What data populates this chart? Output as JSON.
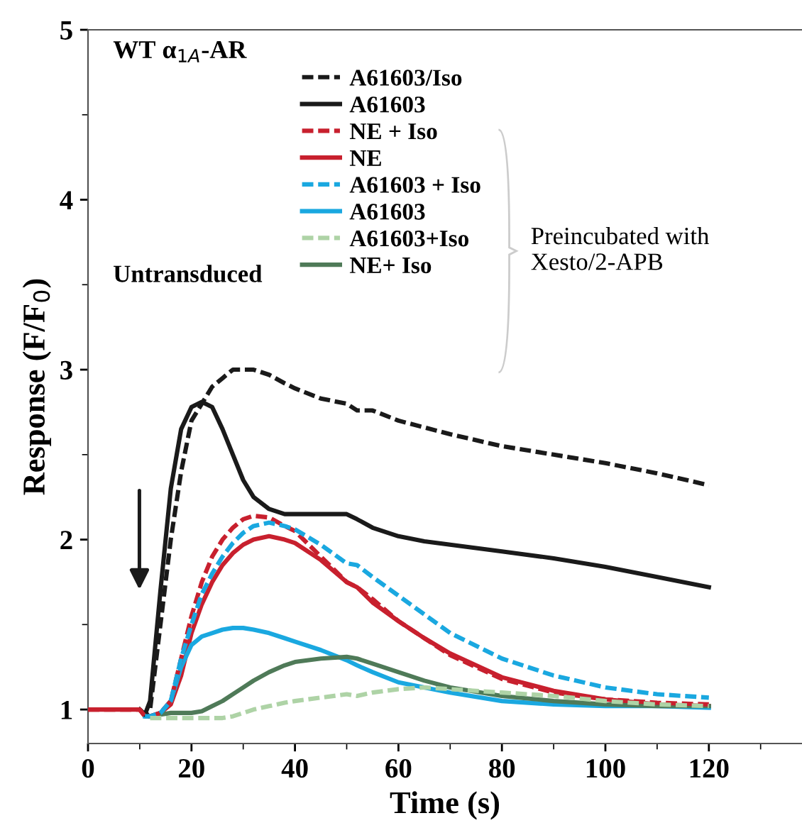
{
  "chart_data": {
    "type": "line",
    "title": "WT α$_{1A}$-AR",
    "xlabel": "Time (s)",
    "ylabel": "Response (F/F$_{0}$)",
    "x": [
      0,
      5,
      10,
      11,
      12,
      14,
      16,
      18,
      20,
      22,
      24,
      26,
      28,
      30,
      32,
      35,
      38,
      40,
      45,
      50,
      52,
      55,
      60,
      65,
      70,
      80,
      90,
      100,
      110,
      120
    ],
    "xlim": [
      0,
      138
    ],
    "ylim": [
      0.8,
      5
    ],
    "xticks": [
      0,
      20,
      40,
      60,
      80,
      100,
      120
    ],
    "yticks": [
      1,
      2,
      3,
      4,
      5
    ],
    "grid": false,
    "legend": "top",
    "marker": "none",
    "series": [
      {
        "name": "A61603/Iso",
        "color": "#1a1a1a",
        "line_style": "dashed",
        "values": [
          null,
          null,
          1.0,
          0.97,
          1.0,
          1.5,
          2.0,
          2.4,
          2.7,
          2.8,
          2.9,
          2.95,
          3.0,
          3.0,
          3.0,
          2.97,
          2.92,
          2.89,
          2.83,
          2.8,
          2.76,
          2.76,
          2.7,
          2.66,
          2.62,
          2.55,
          2.5,
          2.45,
          2.39,
          2.32
        ]
      },
      {
        "name": "A61603",
        "color": "#1a1a1a",
        "line_style": "solid",
        "values": [
          null,
          null,
          1.0,
          0.97,
          1.05,
          1.7,
          2.3,
          2.65,
          2.78,
          2.81,
          2.78,
          2.65,
          2.5,
          2.35,
          2.25,
          2.18,
          2.15,
          2.15,
          2.15,
          2.15,
          2.12,
          2.07,
          2.02,
          1.99,
          1.97,
          1.93,
          1.89,
          1.84,
          1.78,
          1.72
        ]
      },
      {
        "name": "NE + Iso",
        "color": "#c8202e",
        "line_style": "dashed",
        "values": [
          1.0,
          1.0,
          1.0,
          0.96,
          0.96,
          0.98,
          1.05,
          1.3,
          1.55,
          1.75,
          1.9,
          2.0,
          2.07,
          2.12,
          2.14,
          2.13,
          2.08,
          2.05,
          1.9,
          1.75,
          1.72,
          1.65,
          1.52,
          1.42,
          1.32,
          1.18,
          1.1,
          1.06,
          1.04,
          1.03
        ]
      },
      {
        "name": "NE",
        "color": "#c8202e",
        "line_style": "solid",
        "values": [
          1.0,
          1.0,
          1.0,
          0.96,
          0.96,
          0.98,
          1.03,
          1.2,
          1.45,
          1.62,
          1.75,
          1.85,
          1.92,
          1.97,
          2.0,
          2.02,
          2.0,
          1.98,
          1.88,
          1.75,
          1.72,
          1.63,
          1.52,
          1.42,
          1.33,
          1.19,
          1.11,
          1.06,
          1.03,
          1.02
        ]
      },
      {
        "name": "A61603 + Iso",
        "color": "#1aa8e0",
        "line_style": "dashed",
        "values": [
          null,
          null,
          null,
          0.96,
          0.96,
          0.98,
          1.05,
          1.3,
          1.5,
          1.68,
          1.8,
          1.9,
          1.98,
          2.04,
          2.08,
          2.1,
          2.08,
          2.06,
          1.97,
          1.86,
          1.85,
          1.78,
          1.67,
          1.56,
          1.45,
          1.3,
          1.2,
          1.13,
          1.09,
          1.07
        ]
      },
      {
        "name": "A61603",
        "color": "#1aa8e0",
        "line_style": "solid",
        "values": [
          null,
          null,
          null,
          0.96,
          0.96,
          0.98,
          1.05,
          1.25,
          1.38,
          1.43,
          1.45,
          1.47,
          1.48,
          1.48,
          1.47,
          1.45,
          1.42,
          1.4,
          1.35,
          1.29,
          1.26,
          1.22,
          1.16,
          1.13,
          1.1,
          1.05,
          1.03,
          1.02,
          1.02,
          1.01
        ]
      },
      {
        "name": "A61603+Iso",
        "color": "#aed3a6",
        "line_style": "dashed",
        "values": [
          null,
          null,
          null,
          null,
          0.95,
          0.95,
          0.95,
          0.95,
          0.95,
          0.95,
          0.95,
          0.95,
          0.96,
          0.98,
          1.0,
          1.02,
          1.04,
          1.05,
          1.07,
          1.09,
          1.08,
          1.1,
          1.12,
          1.13,
          1.12,
          1.1,
          1.08,
          1.05,
          1.03,
          1.02
        ]
      },
      {
        "name": "NE+ Iso",
        "color": "#4f7a58",
        "line_style": "solid",
        "values": [
          null,
          null,
          null,
          null,
          0.96,
          0.97,
          0.98,
          0.98,
          0.98,
          0.99,
          1.02,
          1.05,
          1.09,
          1.13,
          1.17,
          1.22,
          1.26,
          1.28,
          1.3,
          1.31,
          1.3,
          1.27,
          1.22,
          1.17,
          1.13,
          1.08,
          1.05,
          1.03,
          1.02,
          1.02
        ]
      }
    ],
    "annotations": [
      "Untransduced",
      "Preincubated with\nXesto/2-APB"
    ]
  }
}
